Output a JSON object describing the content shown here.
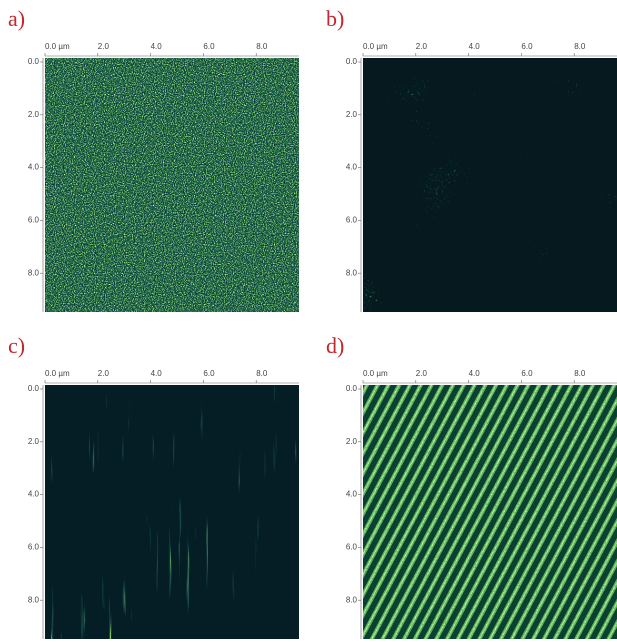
{
  "panels": [
    {
      "label": "a)",
      "xticks": [
        "0.0 µm",
        "2.0",
        "4.0",
        "6.0",
        "8.0"
      ],
      "yticks": [
        "0.0",
        "2.0",
        "4.0",
        "6.0",
        "8.0"
      ]
    },
    {
      "label": "b)",
      "xticks": [
        "0.0 µm",
        "2.0",
        "4.0",
        "6.0",
        "8.0"
      ],
      "yticks": [
        "0.0",
        "2.0",
        "4.0",
        "6.0",
        "8.0"
      ]
    },
    {
      "label": "c)",
      "xticks": [
        "0.0 µm",
        "2.0",
        "4.0",
        "6.0",
        "8.0"
      ],
      "yticks": [
        "0.0",
        "2.0",
        "4.0",
        "6.0",
        "8.0"
      ]
    },
    {
      "label": "d)",
      "xticks": [
        "0.0 µm",
        "2.0",
        "4.0",
        "6.0",
        "8.0"
      ],
      "yticks": [
        "0.0",
        "2.0",
        "4.0",
        "6.0",
        "8.0"
      ]
    }
  ]
}
